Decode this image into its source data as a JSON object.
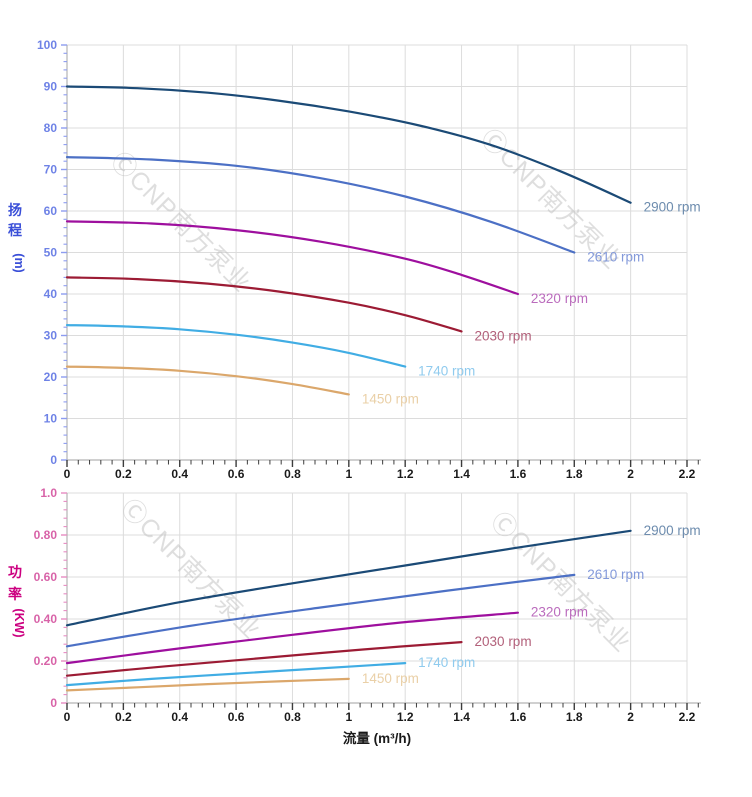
{
  "page": {
    "background": "#ffffff"
  },
  "watermark": {
    "text": "ⒸCNP南方泵业",
    "color": "#bfbfbf",
    "opacity": 0.5
  },
  "axis_style": {
    "grid_color": "#dcdcdc",
    "axis_line_color": "#b3b3b3",
    "x_tick_color": "#3c3c3c",
    "x_tick_label_color": "#1a1a1a"
  },
  "chart_data": [
    {
      "type": "line",
      "title": "",
      "xlabel": "流量 (m³/h)",
      "ylabel": "扬程 (m)",
      "ylabel_chars": [
        "扬",
        "程"
      ],
      "ylabel_unit": "(m)",
      "xlim": [
        0,
        2.2
      ],
      "ylim": [
        0,
        100
      ],
      "x_major_step": 0.2,
      "x_minor_step": 0.04,
      "y_major_step": 10,
      "y_minor_step": 2,
      "x_tick_labels": [
        "0",
        "0.2",
        "0.4",
        "0.6",
        "0.8",
        "1",
        "1.2",
        "1.4",
        "1.6",
        "1.8",
        "2",
        "2.2"
      ],
      "y_tick_labels": [
        "0",
        "10",
        "20",
        "30",
        "40",
        "50",
        "60",
        "70",
        "80",
        "90",
        "100"
      ],
      "grid": true,
      "legend_position": "inline-end-labels",
      "y_tick_label_color": "#6e82e6",
      "y_tick_color": "#8d9cf0",
      "y_title_color": "#3a4fd8",
      "series": [
        {
          "name": "2900 rpm",
          "color": "#1b4a76",
          "label_color": "#6d8cae",
          "points": [
            [
              0,
              90
            ],
            [
              0.25,
              89.6
            ],
            [
              0.5,
              88.5
            ],
            [
              0.75,
              86.6
            ],
            [
              1.0,
              84.0
            ],
            [
              1.25,
              80.6
            ],
            [
              1.5,
              76.0
            ],
            [
              1.75,
              69.6
            ],
            [
              2.0,
              62.0
            ]
          ]
        },
        {
          "name": "2610 rpm",
          "color": "#4c70c5",
          "label_color": "#8399da",
          "points": [
            [
              0,
              73
            ],
            [
              0.3,
              72.4
            ],
            [
              0.6,
              70.9
            ],
            [
              0.9,
              67.9
            ],
            [
              1.2,
              63.5
            ],
            [
              1.5,
              57.5
            ],
            [
              1.8,
              50.0
            ]
          ]
        },
        {
          "name": "2320 rpm",
          "color": "#9e0f9e",
          "label_color": "#bb6cbd",
          "points": [
            [
              0,
              57.5
            ],
            [
              0.3,
              57.0
            ],
            [
              0.6,
              55.4
            ],
            [
              0.9,
              52.6
            ],
            [
              1.2,
              48.5
            ],
            [
              1.4,
              44.6
            ],
            [
              1.6,
              40.0
            ]
          ]
        },
        {
          "name": "2030 rpm",
          "color": "#9c1b34",
          "label_color": "#b2607a",
          "points": [
            [
              0,
              44
            ],
            [
              0.25,
              43.6
            ],
            [
              0.5,
              42.5
            ],
            [
              0.75,
              40.6
            ],
            [
              1.0,
              37.9
            ],
            [
              1.2,
              34.9
            ],
            [
              1.4,
              31.0
            ]
          ]
        },
        {
          "name": "1740 rpm",
          "color": "#41ade4",
          "label_color": "#90cbee",
          "points": [
            [
              0,
              32.5
            ],
            [
              0.2,
              32.2
            ],
            [
              0.4,
              31.5
            ],
            [
              0.6,
              30.2
            ],
            [
              0.8,
              28.3
            ],
            [
              1.0,
              25.8
            ],
            [
              1.2,
              22.5
            ]
          ]
        },
        {
          "name": "1450 rpm",
          "color": "#dba76b",
          "label_color": "#ead0a7",
          "points": [
            [
              0,
              22.5
            ],
            [
              0.2,
              22.2
            ],
            [
              0.4,
              21.5
            ],
            [
              0.6,
              20.2
            ],
            [
              0.8,
              18.3
            ],
            [
              1.0,
              15.8
            ]
          ]
        }
      ]
    },
    {
      "type": "line",
      "title": "",
      "xlabel": "流量 (m³/h)",
      "ylabel": "功率 (KW)",
      "ylabel_chars": [
        "功",
        "率"
      ],
      "ylabel_unit": "(KW)",
      "xlim": [
        0,
        2.2
      ],
      "ylim": [
        0,
        1.0
      ],
      "x_major_step": 0.2,
      "x_minor_step": 0.04,
      "y_major_step": 0.2,
      "y_minor_step": 0.04,
      "x_tick_labels": [
        "0",
        "0.2",
        "0.4",
        "0.6",
        "0.8",
        "1",
        "1.2",
        "1.4",
        "1.6",
        "1.8",
        "2",
        "2.2"
      ],
      "y_tick_labels": [
        "0",
        "0.20",
        "0.40",
        "0.60",
        "0.80",
        "1.0"
      ],
      "grid": true,
      "legend_position": "inline-end-labels",
      "y_tick_label_color": "#d863a8",
      "y_tick_color": "#e68cc2",
      "y_title_color": "#cc0080",
      "series": [
        {
          "name": "2900 rpm",
          "color": "#1b4a76",
          "label_color": "#6d8cae",
          "points": [
            [
              0,
              0.37
            ],
            [
              0.4,
              0.48
            ],
            [
              0.8,
              0.57
            ],
            [
              1.2,
              0.655
            ],
            [
              1.6,
              0.74
            ],
            [
              2.0,
              0.82
            ]
          ]
        },
        {
          "name": "2610 rpm",
          "color": "#4c70c5",
          "label_color": "#8399da",
          "points": [
            [
              0,
              0.27
            ],
            [
              0.45,
              0.37
            ],
            [
              0.9,
              0.455
            ],
            [
              1.35,
              0.535
            ],
            [
              1.8,
              0.61
            ]
          ]
        },
        {
          "name": "2320 rpm",
          "color": "#9e0f9e",
          "label_color": "#bb6cbd",
          "points": [
            [
              0,
              0.19
            ],
            [
              0.4,
              0.26
            ],
            [
              0.8,
              0.325
            ],
            [
              1.2,
              0.385
            ],
            [
              1.6,
              0.43
            ]
          ]
        },
        {
          "name": "2030 rpm",
          "color": "#9c1b34",
          "label_color": "#b2607a",
          "points": [
            [
              0,
              0.13
            ],
            [
              0.35,
              0.175
            ],
            [
              0.7,
              0.215
            ],
            [
              1.05,
              0.255
            ],
            [
              1.4,
              0.29
            ]
          ]
        },
        {
          "name": "1740 rpm",
          "color": "#41ade4",
          "label_color": "#90cbee",
          "points": [
            [
              0,
              0.085
            ],
            [
              0.3,
              0.115
            ],
            [
              0.6,
              0.14
            ],
            [
              0.9,
              0.165
            ],
            [
              1.2,
              0.19
            ]
          ]
        },
        {
          "name": "1450 rpm",
          "color": "#dba76b",
          "label_color": "#ead0a7",
          "points": [
            [
              0,
              0.06
            ],
            [
              0.25,
              0.075
            ],
            [
              0.5,
              0.09
            ],
            [
              0.75,
              0.103
            ],
            [
              1.0,
              0.115
            ]
          ]
        }
      ]
    }
  ]
}
